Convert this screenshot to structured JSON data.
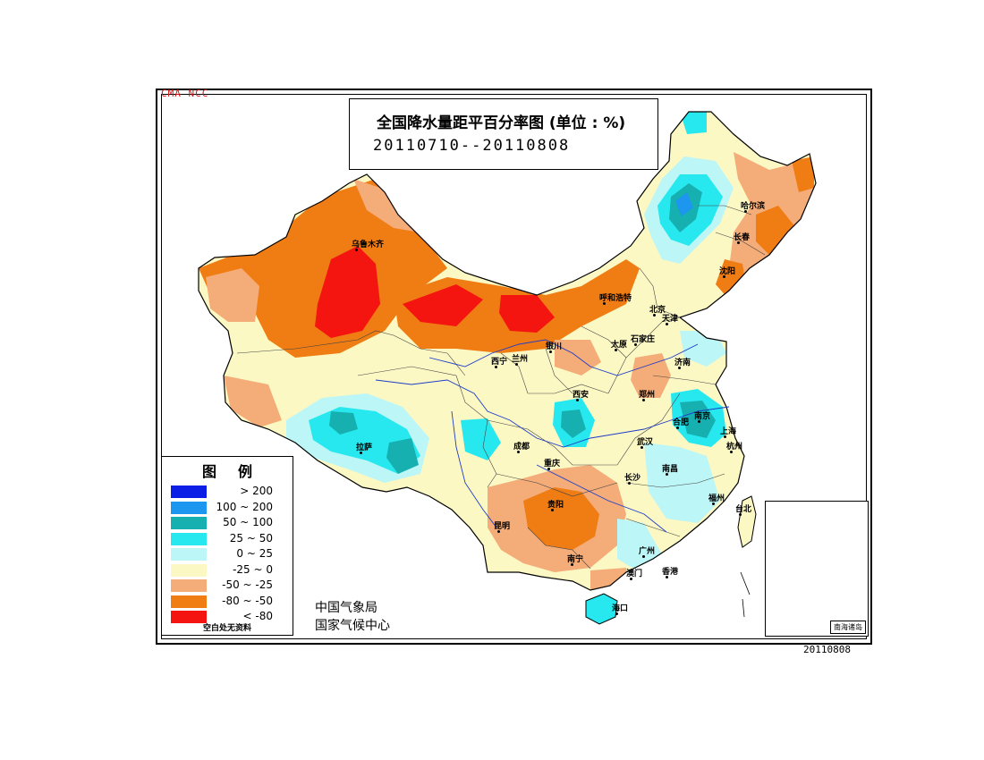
{
  "credit": "CMA NCC",
  "title": {
    "main": "全国降水量距平百分率图 (单位 : %)",
    "date_range": "20110710--20110808"
  },
  "legend": {
    "title": "图例",
    "items": [
      {
        "label": "> 200",
        "color": "#0a1ee6"
      },
      {
        "label": "100 ~ 200",
        "color": "#1c96ee"
      },
      {
        "label": "50 ~ 100",
        "color": "#16b0b0"
      },
      {
        "label": "25 ~ 50",
        "color": "#27e8ee"
      },
      {
        "label": "0 ~ 25",
        "color": "#bcf6f6"
      },
      {
        "label": "-25 ~ 0",
        "color": "#fcf8c4"
      },
      {
        "label": "-50 ~ -25",
        "color": "#f4ac78"
      },
      {
        "label": "-80 ~ -50",
        "color": "#f07c14"
      },
      {
        "label": "< -80",
        "color": "#f41410"
      }
    ],
    "note": "空白处无资料"
  },
  "agency": {
    "line1": "中国气象局",
    "line2": "国家气候中心"
  },
  "inset": {
    "label": "南海诸岛"
  },
  "date_stamp": "20110808",
  "cities": [
    {
      "name": "乌鲁木齐"
    },
    {
      "name": "哈尔滨"
    },
    {
      "name": "长春"
    },
    {
      "name": "沈阳"
    },
    {
      "name": "呼和浩特"
    },
    {
      "name": "北京"
    },
    {
      "name": "天津"
    },
    {
      "name": "石家庄"
    },
    {
      "name": "太原"
    },
    {
      "name": "济南"
    },
    {
      "name": "银川"
    },
    {
      "name": "西宁"
    },
    {
      "name": "兰州"
    },
    {
      "name": "西安"
    },
    {
      "name": "郑州"
    },
    {
      "name": "合肥"
    },
    {
      "name": "南京"
    },
    {
      "name": "上海"
    },
    {
      "name": "杭州"
    },
    {
      "name": "武汉"
    },
    {
      "name": "拉萨"
    },
    {
      "name": "成都"
    },
    {
      "name": "重庆"
    },
    {
      "name": "长沙"
    },
    {
      "name": "南昌"
    },
    {
      "name": "福州"
    },
    {
      "name": "台北"
    },
    {
      "name": "贵阳"
    },
    {
      "name": "昆明"
    },
    {
      "name": "南宁"
    },
    {
      "name": "广州"
    },
    {
      "name": "澳门"
    },
    {
      "name": "香港"
    },
    {
      "name": "海口"
    }
  ]
}
